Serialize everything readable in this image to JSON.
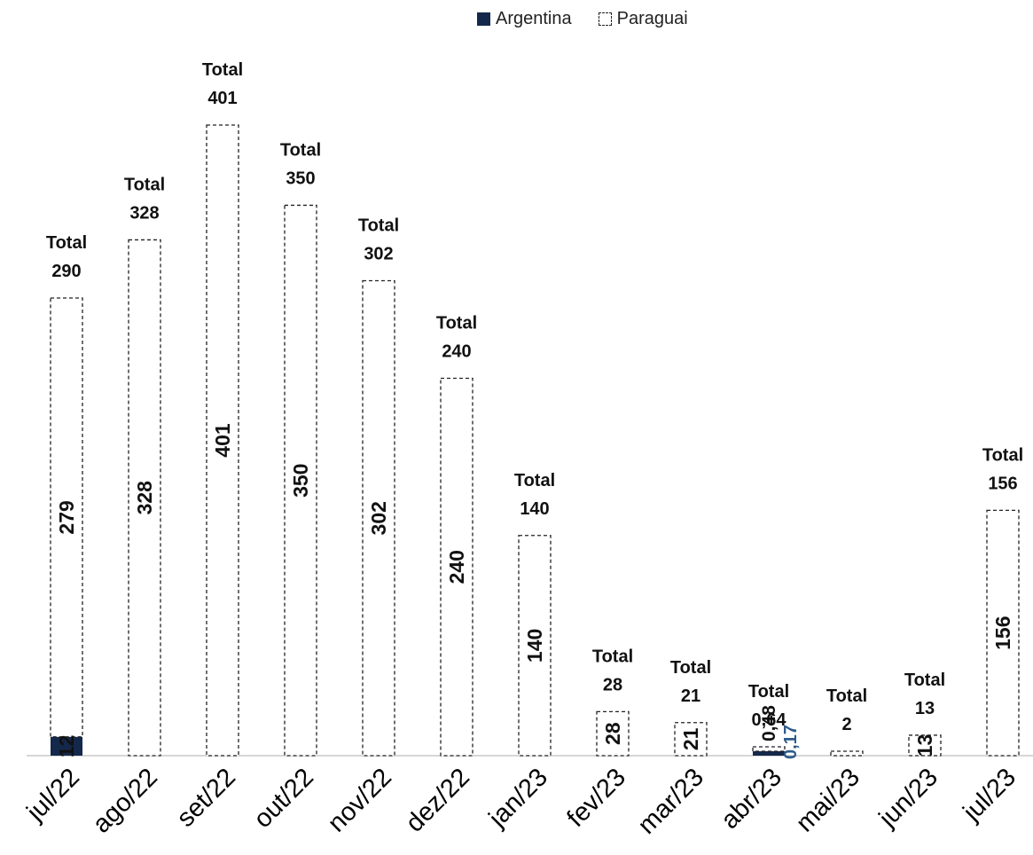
{
  "colors": {
    "argentina": "#14284b",
    "argentina_label": "#2e5a8a",
    "paraguai_fill": "#ffffff",
    "paraguai_stroke": "#222222",
    "axis": "#c8c8c8"
  },
  "legend": {
    "argentina": "Argentina",
    "paraguai": "Paraguai"
  },
  "chart_data": {
    "type": "bar",
    "stacked": true,
    "categories": [
      "jul/22",
      "ago/22",
      "set/22",
      "out/22",
      "nov/22",
      "dez/22",
      "jan/23",
      "fev/23",
      "mar/23",
      "abr/23",
      "mai/23",
      "jun/23",
      "jul/23"
    ],
    "series": [
      {
        "name": "Argentina",
        "values": [
          12,
          0,
          0,
          0,
          0,
          0,
          0,
          0,
          0,
          0.17,
          0,
          0,
          0
        ],
        "labels": [
          "12",
          "",
          "",
          "",
          "",
          "",
          "",
          "",
          "",
          "0,17",
          "",
          "",
          ""
        ]
      },
      {
        "name": "Paraguai",
        "values": [
          279,
          328,
          401,
          350,
          302,
          240,
          140,
          28,
          21,
          0.48,
          2,
          13,
          156
        ],
        "labels": [
          "279",
          "328",
          "401",
          "350",
          "302",
          "240",
          "140",
          "28",
          "21",
          "0,48",
          "",
          "13",
          "156"
        ]
      }
    ],
    "totals": [
      290,
      328,
      401,
      350,
      302,
      240,
      140,
      28,
      21,
      0.64,
      2,
      13,
      156
    ],
    "total_prefix": "Total",
    "total_labels": [
      "290",
      "328",
      "401",
      "350",
      "302",
      "240",
      "140",
      "28",
      "21",
      "0,64",
      "2",
      "13",
      "156"
    ],
    "ylim": [
      0,
      401
    ],
    "legend_position": "top"
  }
}
